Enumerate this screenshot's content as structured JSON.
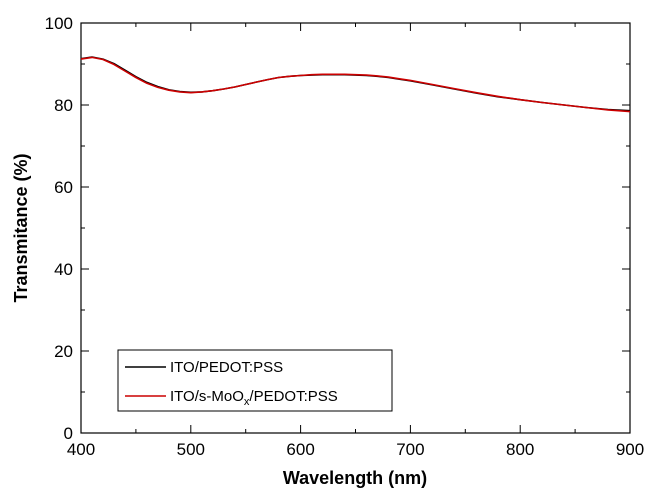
{
  "chart_data": {
    "type": "line",
    "xlabel": "Wavelength (nm)",
    "ylabel": "Transmitance (%)",
    "xlim": [
      400,
      900
    ],
    "ylim": [
      0,
      100
    ],
    "x_ticks": [
      400,
      500,
      600,
      700,
      800,
      900
    ],
    "y_ticks": [
      0,
      20,
      40,
      60,
      80,
      100
    ],
    "grid": false,
    "legend_position": "bottom-left",
    "series": [
      {
        "name": "ITO/PEDOT:PSS",
        "color": "#000000",
        "x": [
          400,
          410,
          420,
          430,
          440,
          450,
          460,
          470,
          480,
          490,
          500,
          510,
          520,
          530,
          540,
          550,
          560,
          570,
          580,
          590,
          600,
          610,
          620,
          630,
          640,
          650,
          660,
          670,
          680,
          690,
          700,
          720,
          740,
          760,
          780,
          800,
          820,
          840,
          860,
          880,
          900
        ],
        "y": [
          91.3,
          91.7,
          91.2,
          90.1,
          88.5,
          86.9,
          85.5,
          84.5,
          83.7,
          83.3,
          83.1,
          83.2,
          83.5,
          83.9,
          84.4,
          85.0,
          85.6,
          86.2,
          86.7,
          87.0,
          87.2,
          87.3,
          87.4,
          87.4,
          87.4,
          87.3,
          87.2,
          87.0,
          86.7,
          86.3,
          85.9,
          84.9,
          83.9,
          82.9,
          82.0,
          81.3,
          80.6,
          80.0,
          79.4,
          78.9,
          78.6
        ]
      },
      {
        "name": "ITO/s-MoO",
        "name_subscript": "x",
        "name_suffix": "/PEDOT:PSS",
        "color": "#cc0000",
        "x": [
          400,
          410,
          420,
          430,
          440,
          450,
          460,
          470,
          480,
          490,
          500,
          510,
          520,
          530,
          540,
          550,
          560,
          570,
          580,
          590,
          600,
          610,
          620,
          630,
          640,
          650,
          660,
          670,
          680,
          690,
          700,
          720,
          740,
          760,
          780,
          800,
          820,
          840,
          860,
          880,
          900
        ],
        "y": [
          91.2,
          91.6,
          91.1,
          89.9,
          88.3,
          86.7,
          85.3,
          84.3,
          83.6,
          83.2,
          83.0,
          83.2,
          83.5,
          83.9,
          84.4,
          85.0,
          85.6,
          86.2,
          86.7,
          87.0,
          87.2,
          87.4,
          87.5,
          87.5,
          87.5,
          87.4,
          87.3,
          87.1,
          86.8,
          86.4,
          86.0,
          85.0,
          84.0,
          83.0,
          82.1,
          81.3,
          80.6,
          80.0,
          79.4,
          78.8,
          78.4
        ]
      }
    ]
  }
}
